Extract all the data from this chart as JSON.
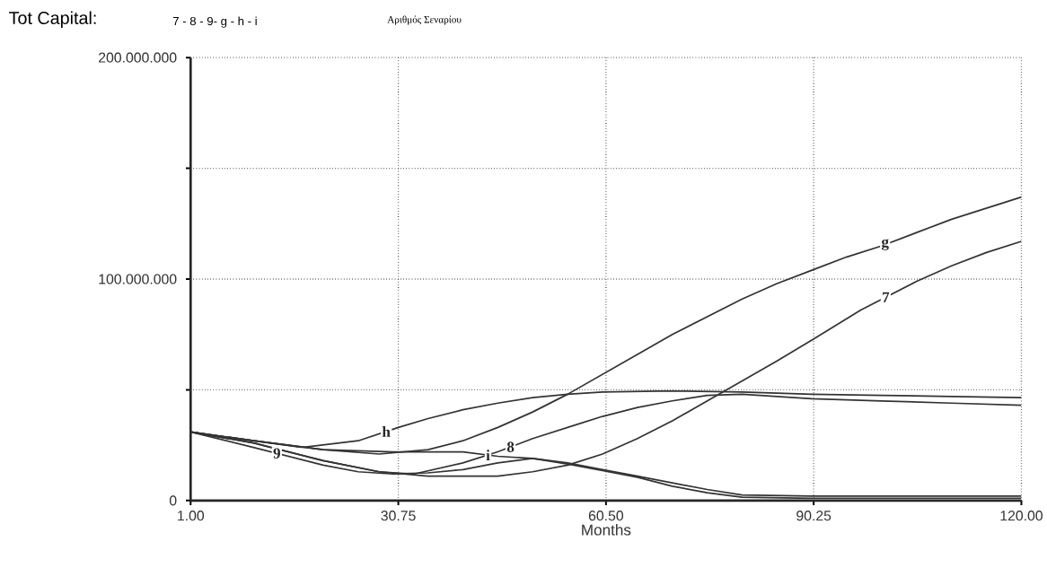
{
  "chart_data": {
    "type": "line",
    "title": "Tot Capital:",
    "xlabel": "Months",
    "annotations": [
      "7 - 8 - 9- g - h - i",
      "Αριθμός Σεναρίου"
    ],
    "xlim": [
      1,
      120
    ],
    "ylim": [
      0,
      200000000
    ],
    "xticks": [
      {
        "value": 1,
        "label": "1.00"
      },
      {
        "value": 30.75,
        "label": "30.75"
      },
      {
        "value": 60.5,
        "label": "60.50"
      },
      {
        "value": 90.25,
        "label": "90.25"
      },
      {
        "value": 120,
        "label": "120.00"
      }
    ],
    "yticks": [
      0,
      {
        "value": 50000000,
        "label": null
      },
      {
        "value": 100000000,
        "label": "100.000.000"
      },
      {
        "value": 150000000,
        "label": null
      },
      {
        "value": 200000000,
        "label": "200.000.000"
      }
    ],
    "grid": true,
    "marker": "none",
    "line_style": "solid",
    "series": [
      {
        "name": "7",
        "color": "#333333",
        "x": [
          1,
          10,
          20,
          28,
          35,
          45,
          50,
          55,
          60,
          65,
          70,
          75,
          80,
          85,
          90.25,
          97,
          105,
          110,
          115,
          120
        ],
        "values": [
          31000000,
          26000000,
          18000000,
          13000000,
          11000000,
          11000000,
          13000000,
          16000000,
          21000000,
          28000000,
          36000000,
          45000000,
          54000000,
          63000000,
          73000000,
          86000000,
          99000000,
          106000000,
          112000000,
          117000000
        ]
      },
      {
        "name": "8",
        "color": "#333333",
        "x": [
          1,
          10,
          20,
          28,
          33,
          40,
          45,
          50,
          56,
          60,
          65,
          70,
          75,
          80,
          90,
          100,
          110,
          120
        ],
        "values": [
          31000000,
          26000000,
          18000000,
          13000000,
          12000000,
          17000000,
          22000000,
          28000000,
          34000000,
          38000000,
          42000000,
          45000000,
          47500000,
          48000000,
          46000000,
          45000000,
          44000000,
          43000000
        ]
      },
      {
        "name": "9",
        "color": "#333333",
        "x": [
          1,
          10,
          20,
          25,
          30,
          35,
          40,
          45,
          50,
          55,
          60,
          65,
          70,
          75,
          80,
          90,
          120
        ],
        "values": [
          31000000,
          24000000,
          16000000,
          13000000,
          12000000,
          12500000,
          14000000,
          17000000,
          19000000,
          16500000,
          13500000,
          10500000,
          6500000,
          3500000,
          1500000,
          1000000,
          1000000
        ]
      },
      {
        "name": "g",
        "color": "#333333",
        "x": [
          1,
          10,
          20,
          28,
          35,
          40,
          45,
          50,
          55,
          60,
          65,
          70,
          75,
          80,
          85,
          90,
          95,
          100,
          105,
          110,
          115,
          120
        ],
        "values": [
          31000000,
          27000000,
          23000000,
          21000000,
          23000000,
          27000000,
          33000000,
          40000000,
          48000000,
          57000000,
          66000000,
          75000000,
          83000000,
          91000000,
          98000000,
          104000000,
          110000000,
          115000000,
          121000000,
          127000000,
          132000000,
          137000000
        ]
      },
      {
        "name": "h",
        "color": "#333333",
        "x": [
          1,
          10,
          17,
          25,
          30.75,
          35,
          40,
          45,
          50,
          55,
          60,
          70,
          80,
          90,
          100,
          110,
          120
        ],
        "values": [
          31000000,
          27000000,
          24000000,
          27000000,
          33000000,
          37000000,
          41000000,
          44000000,
          46500000,
          48000000,
          49000000,
          49500000,
          49000000,
          48000000,
          47500000,
          47000000,
          46500000
        ]
      },
      {
        "name": "i",
        "color": "#333333",
        "x": [
          1,
          10,
          15,
          20,
          30,
          40,
          45,
          50,
          55,
          60,
          65,
          70,
          75,
          80,
          90,
          120
        ],
        "values": [
          31000000,
          27000000,
          25000000,
          23000000,
          22000000,
          22000000,
          20000000,
          19000000,
          17000000,
          14000000,
          11000000,
          8000000,
          5000000,
          2500000,
          2000000,
          2000000
        ]
      }
    ]
  }
}
